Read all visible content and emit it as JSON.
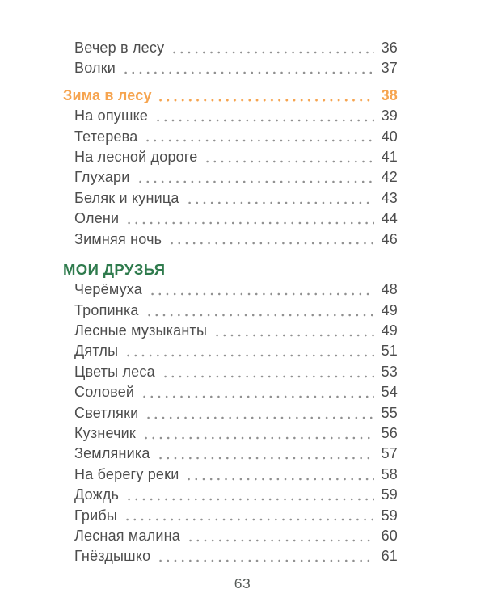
{
  "page": {
    "kind": "book-table-of-contents",
    "footer_page_number": "63"
  },
  "colors": {
    "text": "#4d4d4d",
    "dots": "#8f8f8f",
    "orange": "#f6a44f",
    "green": "#2f7b4d",
    "folio": "#565b58"
  },
  "toc": {
    "sections": [
      {
        "type": "plain",
        "items": [
          {
            "title": "Вечер в лесу",
            "page": "36"
          },
          {
            "title": "Волки",
            "page": "37"
          }
        ]
      },
      {
        "type": "section",
        "style": "orange",
        "heading": {
          "title": "Зима в лесу",
          "page": "38"
        },
        "items": [
          {
            "title": "На опушке",
            "page": "39"
          },
          {
            "title": "Тетерева",
            "page": "40"
          },
          {
            "title": "На лесной дороге",
            "page": "41"
          },
          {
            "title": "Глухари",
            "page": "42"
          },
          {
            "title": "Беляк и куница",
            "page": "43"
          },
          {
            "title": "Олени",
            "page": "44"
          },
          {
            "title": "Зимняя ночь",
            "page": "46"
          }
        ]
      },
      {
        "type": "section",
        "style": "green",
        "heading": {
          "title": "МОИ ДРУЗЬЯ",
          "page": null
        },
        "items": [
          {
            "title": "Черёмуха",
            "page": "48"
          },
          {
            "title": "Тропинка",
            "page": "49"
          },
          {
            "title": "Лесные музыканты",
            "page": "49"
          },
          {
            "title": "Дятлы",
            "page": "51"
          },
          {
            "title": "Цветы леса",
            "page": "53"
          },
          {
            "title": "Соловей",
            "page": "54"
          },
          {
            "title": "Светляки",
            "page": "55"
          },
          {
            "title": "Кузнечик",
            "page": "56"
          },
          {
            "title": "Земляника",
            "page": "57"
          },
          {
            "title": "На берегу реки",
            "page": "58"
          },
          {
            "title": "Дождь",
            "page": "59"
          },
          {
            "title": "Грибы",
            "page": "59"
          },
          {
            "title": "Лесная малина",
            "page": "60"
          },
          {
            "title": "Гнёздышко",
            "page": "61"
          }
        ]
      }
    ]
  }
}
